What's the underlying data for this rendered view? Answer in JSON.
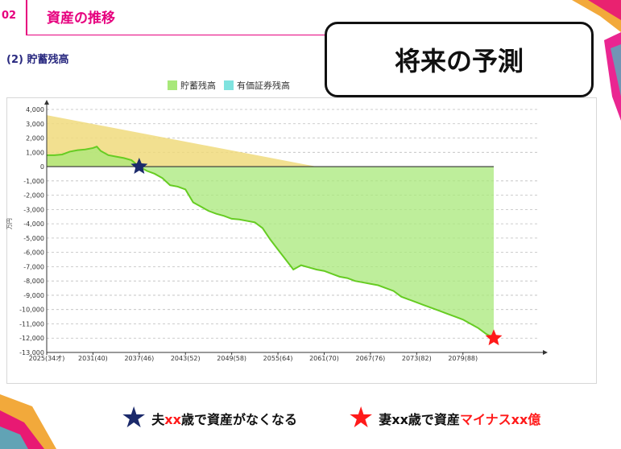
{
  "header": {
    "section_number": "02",
    "section_title": "資産の推移"
  },
  "subtitle": "(2) 貯蓄残高",
  "callout": {
    "text": "将来の予測"
  },
  "colors": {
    "accent": "#e6007e",
    "savings": "#a8e87a",
    "securities": "#7fe3df",
    "positive_area": "#f0db7c",
    "line": "#66cc22",
    "husband_star": "#1b2a6b",
    "wife_star": "#ff1a1a"
  },
  "chart_data": {
    "type": "area",
    "legend": [
      {
        "name": "貯蓄残高",
        "color": "#a8e87a"
      },
      {
        "name": "有価証券残高",
        "color": "#7fe3df"
      }
    ],
    "ylabel": "万円",
    "ylim": [
      -13000,
      4000
    ],
    "yticks": [
      4000,
      3000,
      2000,
      1000,
      0,
      -1000,
      -2000,
      -3000,
      -4000,
      -5000,
      -6000,
      -7000,
      -8000,
      -9000,
      -10000,
      -11000,
      -12000,
      -13000
    ],
    "ytick_labels": [
      "4,000",
      "3,000",
      "2,000",
      "1,000",
      "0",
      "-1,000",
      "-2,000",
      "-3,000",
      "-4,000",
      "-5,000",
      "-6,000",
      "-7,000",
      "-8,000",
      "-9,000",
      "-10,000",
      "-11,000",
      "-12,000",
      "-13,000"
    ],
    "xlim": [
      2025,
      2090
    ],
    "xticks": [
      2025,
      2031,
      2037,
      2043,
      2049,
      2055,
      2061,
      2067,
      2073,
      2079
    ],
    "xtick_labels": [
      "2025(34才)",
      "2031(40)",
      "2037(46)",
      "2043(52)",
      "2049(58)",
      "2055(64)",
      "2061(70)",
      "2067(76)",
      "2073(82)",
      "2079(88)"
    ],
    "grid": true,
    "securities_series": {
      "x": [
        2025,
        2060
      ],
      "y": [
        3600,
        0
      ]
    },
    "savings_series": {
      "x": [
        2025,
        2026,
        2027,
        2028,
        2029,
        2030,
        2031,
        2031.5,
        2032,
        2033,
        2034,
        2035,
        2036,
        2037,
        2038,
        2039,
        2040,
        2041,
        2042,
        2043,
        2044,
        2045,
        2046,
        2047,
        2048,
        2049,
        2050,
        2051,
        2052,
        2053,
        2054,
        2055,
        2056,
        2057,
        2058,
        2059,
        2060,
        2061,
        2062,
        2063,
        2064,
        2065,
        2066,
        2067,
        2068,
        2069,
        2070,
        2071,
        2072,
        2073,
        2074,
        2075,
        2076,
        2077,
        2078,
        2079,
        2080,
        2081,
        2082,
        2083
      ],
      "y": [
        800,
        800,
        850,
        1050,
        1150,
        1200,
        1300,
        1400,
        1100,
        800,
        700,
        600,
        450,
        0,
        -300,
        -500,
        -800,
        -1300,
        -1400,
        -1600,
        -2500,
        -2800,
        -3100,
        -3300,
        -3450,
        -3650,
        -3700,
        -3800,
        -3900,
        -4300,
        -5100,
        -5800,
        -6500,
        -7200,
        -6900,
        -7050,
        -7200,
        -7300,
        -7500,
        -7700,
        -7800,
        -8000,
        -8100,
        -8200,
        -8300,
        -8500,
        -8700,
        -9100,
        -9300,
        -9500,
        -9700,
        -9900,
        -10100,
        -10300,
        -10500,
        -10700,
        -11000,
        -11300,
        -11700,
        -12000
      ]
    },
    "markers": [
      {
        "name": "husband",
        "x": 2037,
        "y": 0
      },
      {
        "name": "wife",
        "x": 2083,
        "y": -12000
      }
    ]
  },
  "bottom_legend": {
    "husband": {
      "prefix": "夫",
      "xx": "xx",
      "rest": "歳で資産がなくなる"
    },
    "wife": {
      "prefix": "妻xx歳で資産",
      "accent": "マイナスxx億"
    }
  }
}
